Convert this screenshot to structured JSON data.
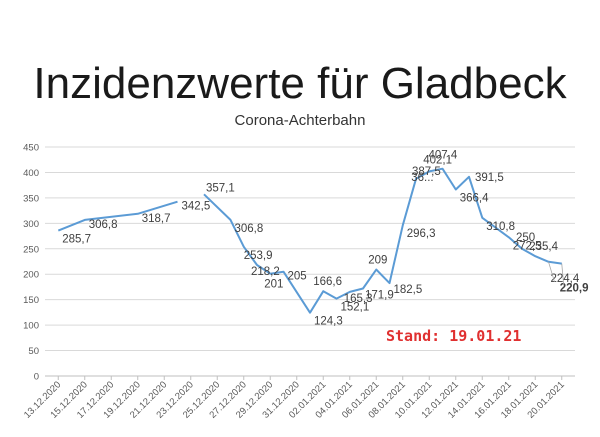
{
  "chart_data": {
    "type": "line",
    "title": "Inzidenzwerte für Gladbeck",
    "subtitle": "Corona-Achterbahn",
    "status_text": "Stand: 19.01.21",
    "ylim": [
      0,
      450
    ],
    "yticks": [
      0,
      50,
      100,
      150,
      200,
      250,
      300,
      350,
      400,
      450
    ],
    "grid": true,
    "line_color": "#5b9bd5",
    "highlight_color": "#e03030",
    "xtick_labels": [
      "13.12.2020",
      "15.12.2020",
      "17.12.2020",
      "19.12.2020",
      "21.12.2020",
      "23.12.2020",
      "25.12.2020",
      "27.12.2020",
      "29.12.2020",
      "31.12.2020",
      "02.01.2021",
      "04.01.2021",
      "06.01.2021",
      "08.01.2021",
      "10.01.2021",
      "12.01.2021",
      "14.01.2021",
      "16.01.2021",
      "18.01.2021",
      "20.01.2021"
    ],
    "series": [
      {
        "segments": [
          [
            {
              "x": "13.12.2020",
              "y": 285.7
            },
            {
              "x": "15.12.2020",
              "y": 306.8
            },
            {
              "x": "19.12.2020",
              "y": 318.7
            },
            {
              "x": "22.12.2020",
              "y": 342.5
            }
          ],
          [
            {
              "x": "24.12.2020",
              "y": 357.1
            },
            {
              "x": "26.12.2020",
              "y": 306.8
            },
            {
              "x": "27.12.2020",
              "y": 253.9
            },
            {
              "x": "28.12.2020",
              "y": 218.2
            },
            {
              "x": "29.12.2020",
              "y": 201
            },
            {
              "x": "30.12.2020",
              "y": 205
            },
            {
              "x": "01.01.2021",
              "y": 124.3
            },
            {
              "x": "02.01.2021",
              "y": 166.6
            },
            {
              "x": "03.01.2021",
              "y": 152.1
            },
            {
              "x": "04.01.2021",
              "y": 165.3
            },
            {
              "x": "05.01.2021",
              "y": 171.9
            },
            {
              "x": "06.01.2021",
              "y": 209
            },
            {
              "x": "07.01.2021",
              "y": 182.5
            },
            {
              "x": "08.01.2021",
              "y": 296.3
            },
            {
              "x": "09.01.2021",
              "y": 387.5
            },
            {
              "x": "10.01.2021",
              "y": 402.1
            },
            {
              "x": "11.01.2021",
              "y": 407.4
            },
            {
              "x": "12.01.2021",
              "y": 366.4
            },
            {
              "x": "13.01.2021",
              "y": 391.5
            },
            {
              "x": "14.01.2021",
              "y": 310.8
            },
            {
              "x": "16.01.2021",
              "y": 272.5
            },
            {
              "x": "17.01.2021",
              "y": 250
            },
            {
              "x": "18.01.2021",
              "y": 235.4
            },
            {
              "x": "19.01.2021",
              "y": 224.4
            },
            {
              "x": "20.01.2021",
              "y": 220.9
            }
          ]
        ]
      }
    ],
    "data_labels": [
      {
        "text": "285,7",
        "x": "13.12.2020",
        "y": 285.7
      },
      {
        "text": "306,8",
        "x": "15.12.2020",
        "y": 306.8
      },
      {
        "text": "318,7",
        "x": "19.12.2020",
        "y": 318.7
      },
      {
        "text": "342,5",
        "x": "22.12.2020",
        "y": 342.5
      },
      {
        "text": "357,1",
        "x": "24.12.2020",
        "y": 357.1
      },
      {
        "text": "306,8",
        "x": "26.12.2020",
        "y": 306.8
      },
      {
        "text": "253,9",
        "x": "27.12.2020",
        "y": 253.9
      },
      {
        "text": "218,2",
        "x": "28.12.2020",
        "y": 218.2
      },
      {
        "text": "201",
        "x": "29.12.2020",
        "y": 201
      },
      {
        "text": "205",
        "x": "30.12.2020",
        "y": 205
      },
      {
        "text": "124,3",
        "x": "01.01.2021",
        "y": 124.3
      },
      {
        "text": "166,6",
        "x": "02.01.2021",
        "y": 166.6
      },
      {
        "text": "152,1",
        "x": "03.01.2021",
        "y": 152.1
      },
      {
        "text": "165,3",
        "x": "04.01.2021",
        "y": 165.3
      },
      {
        "text": "171,9",
        "x": "05.01.2021",
        "y": 171.9
      },
      {
        "text": "209",
        "x": "06.01.2021",
        "y": 209
      },
      {
        "text": "182,5",
        "x": "07.01.2021",
        "y": 182.5
      },
      {
        "text": "296,3",
        "x": "08.01.2021",
        "y": 296.3
      },
      {
        "text": "387,5",
        "x": "09.01.2021",
        "y": 387.5
      },
      {
        "text": "402,1",
        "x": "10.01.2021",
        "y": 402.1
      },
      {
        "text": "36...",
        "x": "10.01.2021",
        "y": 360
      },
      {
        "text": "407,4",
        "x": "11.01.2021",
        "y": 407.4
      },
      {
        "text": "366,4",
        "x": "12.01.2021",
        "y": 366.4
      },
      {
        "text": "391,5",
        "x": "13.01.2021",
        "y": 391.5
      },
      {
        "text": "310,8",
        "x": "14.01.2021",
        "y": 310.8
      },
      {
        "text": "272,5",
        "x": "16.01.2021",
        "y": 272.5
      },
      {
        "text": "250",
        "x": "17.01.2021",
        "y": 250
      },
      {
        "text": "235,4",
        "x": "18.01.2021",
        "y": 235.4
      },
      {
        "text": "224,4",
        "x": "19.01.2021",
        "y": 224.4
      },
      {
        "text": "220,9",
        "x": "20.01.2021",
        "y": 220.9,
        "highlight": true
      }
    ]
  }
}
